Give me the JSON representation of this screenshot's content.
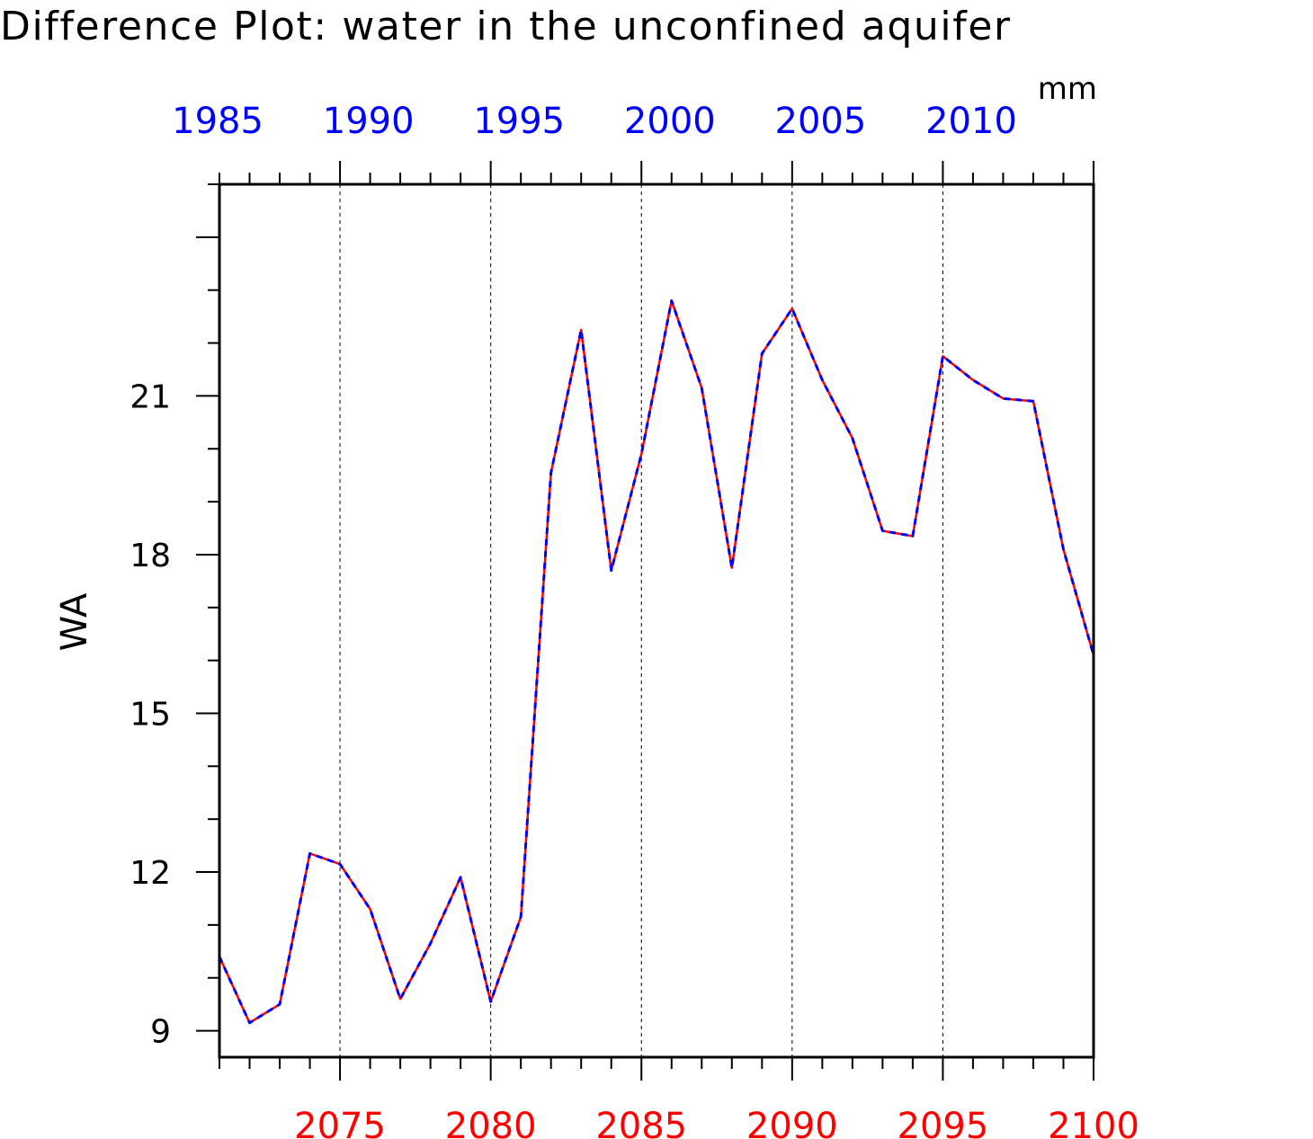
{
  "chart_data": {
    "type": "line",
    "title": "Difference Plot: water in the unconfined aquifer",
    "units": "mm",
    "ylabel": "WA",
    "ylim": [
      8.5,
      25
    ],
    "yticks": [
      9,
      12,
      15,
      18,
      21
    ],
    "grid": "vertical dashed at labeled bottom ticks",
    "x": [
      2071,
      2072,
      2073,
      2074,
      2075,
      2076,
      2077,
      2078,
      2079,
      2080,
      2081,
      2082,
      2083,
      2084,
      2085,
      2086,
      2087,
      2088,
      2089,
      2090,
      2091,
      2092,
      2093,
      2094,
      2095,
      2096,
      2097,
      2098,
      2099,
      2100
    ],
    "xlim": [
      2071,
      2100
    ],
    "xticks_bottom": [
      "2075",
      "2080",
      "2085",
      "2090",
      "2095",
      "2100"
    ],
    "xticks_top": [
      "1985",
      "1990",
      "1995",
      "2000",
      "2005",
      "2010"
    ],
    "series": [
      {
        "color": "#ff0000",
        "dash": "solid",
        "values": [
          10.4,
          9.15,
          9.5,
          12.35,
          12.15,
          11.3,
          9.6,
          10.65,
          11.9,
          9.55,
          11.15,
          19.55,
          22.25,
          17.7,
          19.9,
          22.8,
          21.15,
          17.75,
          21.8,
          22.65,
          21.3,
          20.2,
          18.45,
          18.35,
          21.75,
          21.3,
          20.95,
          20.9,
          18.1,
          16.1
        ]
      },
      {
        "color": "#0000ff",
        "dash": "dashed",
        "values": [
          10.4,
          9.15,
          9.5,
          12.35,
          12.15,
          11.3,
          9.6,
          10.65,
          11.9,
          9.55,
          11.15,
          19.55,
          22.25,
          17.7,
          19.9,
          22.8,
          21.15,
          17.75,
          21.8,
          22.65,
          21.3,
          20.2,
          18.45,
          18.35,
          21.75,
          21.3,
          20.95,
          20.9,
          18.1,
          16.1
        ]
      }
    ]
  },
  "colors": {
    "axis": "#000000",
    "bottom_tick_labels": "#ff0000",
    "top_tick_labels": "#0000ff",
    "grid": "#000000"
  }
}
